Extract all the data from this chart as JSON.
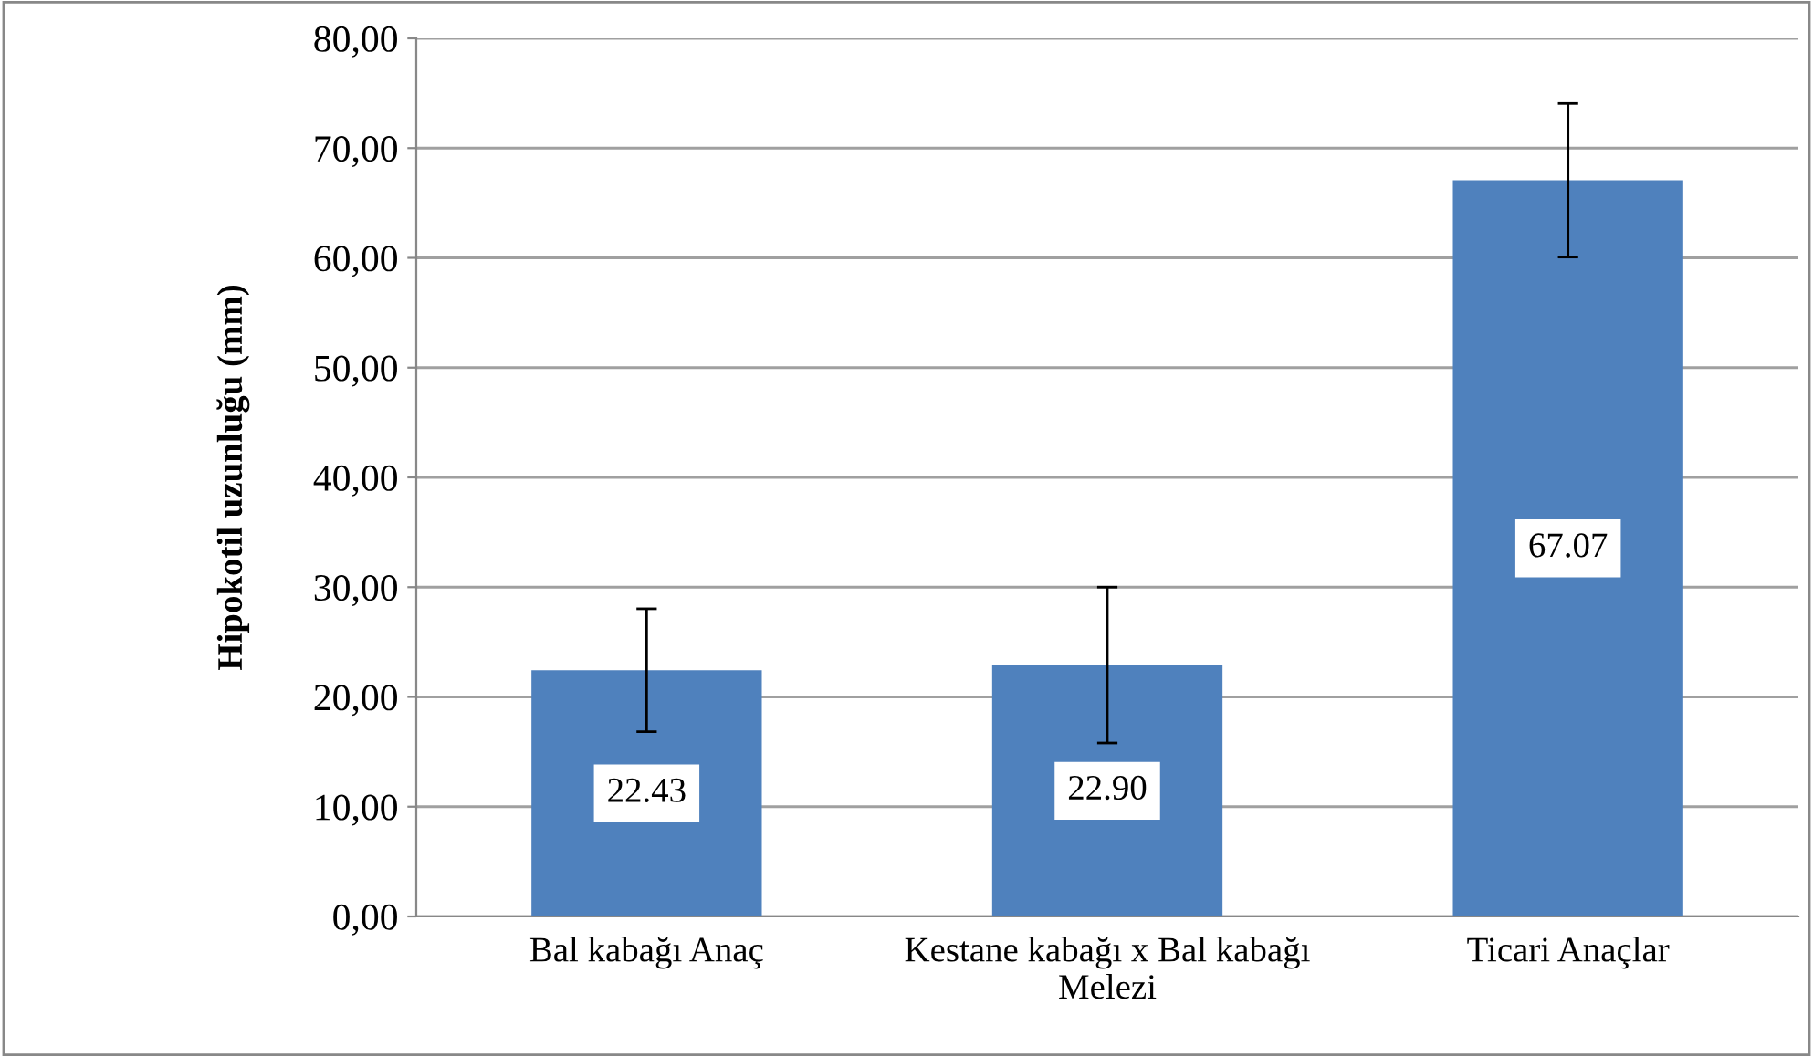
{
  "chart_data": {
    "type": "bar",
    "ylabel": "Hipokotil uzunluğu (mm)",
    "categories": [
      "Bal kabağı Anaç",
      "Kestane kabağı x Bal kabağı\nMelezi",
      "Ticari Anaçlar"
    ],
    "values": [
      22.43,
      22.9,
      67.07
    ],
    "errors": [
      5.6,
      7.1,
      7.0
    ],
    "color": "#4f81bd",
    "value_labels": [
      "22.43",
      "22.90",
      "67.07"
    ],
    "ylim": [
      0,
      80
    ],
    "yticks": [
      {
        "value": 0,
        "label": "0,00"
      },
      {
        "value": 10,
        "label": "10,00"
      },
      {
        "value": 20,
        "label": "20,00"
      },
      {
        "value": 30,
        "label": "30,00"
      },
      {
        "value": 40,
        "label": "40,00"
      },
      {
        "value": 50,
        "label": "50,00"
      },
      {
        "value": 60,
        "label": "60,00"
      },
      {
        "value": 70,
        "label": "70,00"
      },
      {
        "value": 80,
        "label": "80,00"
      }
    ],
    "grid": "y"
  }
}
